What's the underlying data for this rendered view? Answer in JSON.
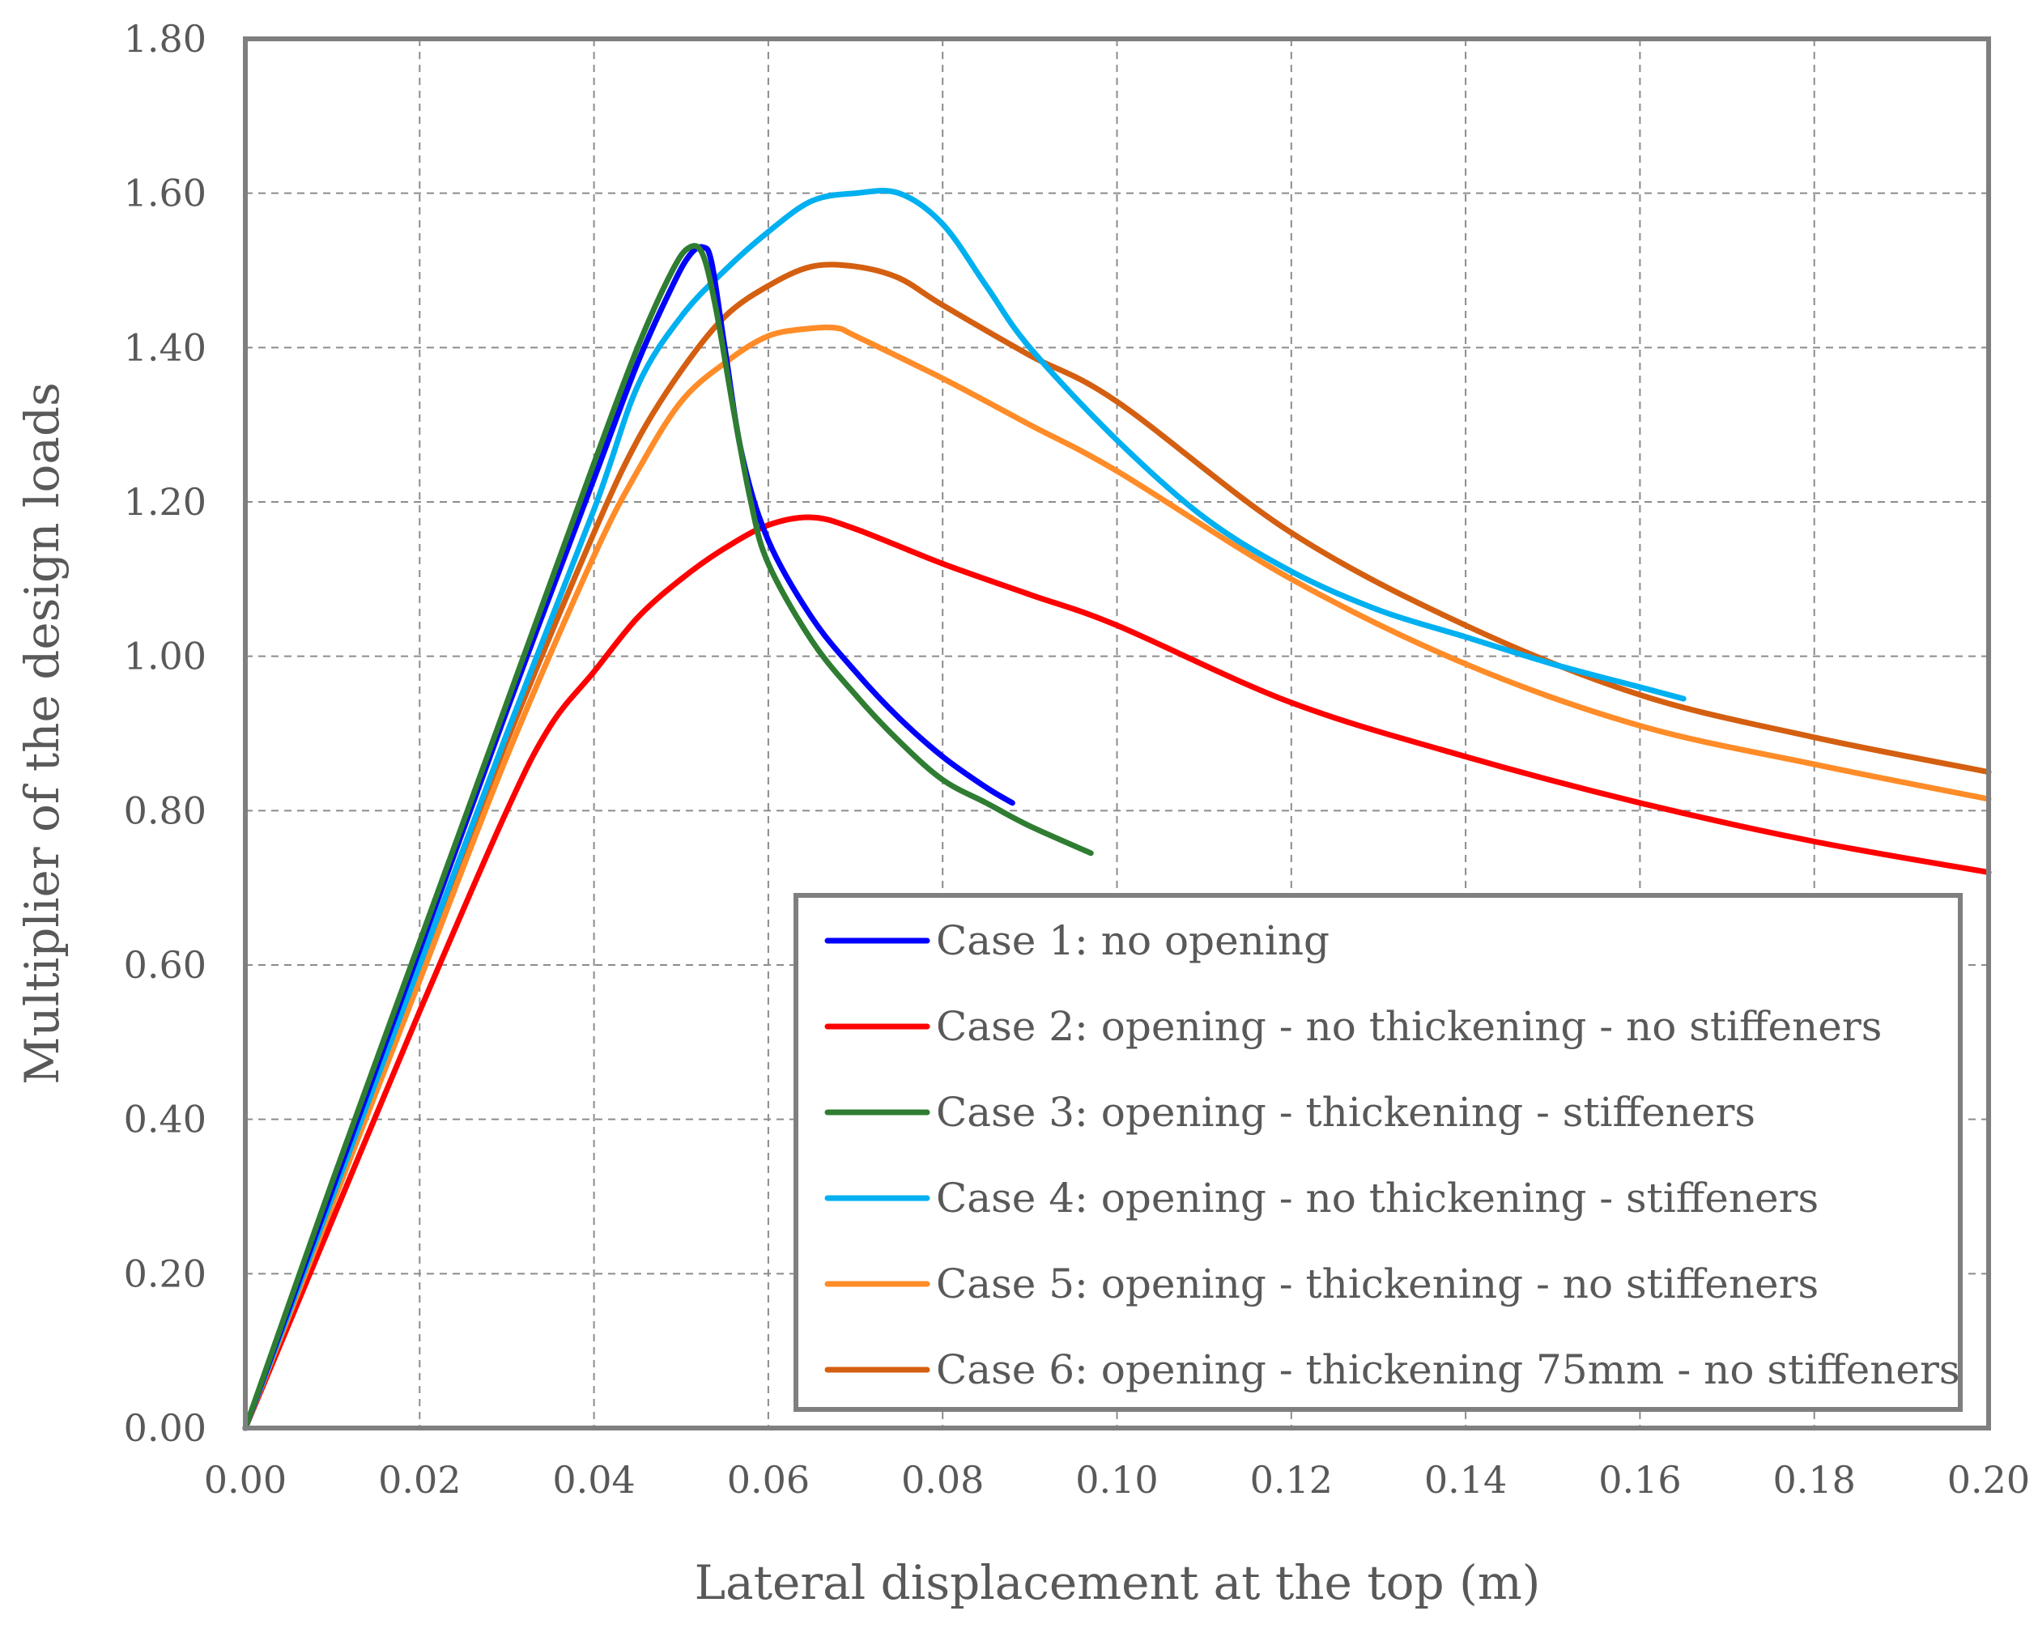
{
  "chart_data": {
    "type": "line",
    "title": "",
    "xlabel": "Lateral displacement at the top (m)",
    "ylabel": "Multiplier of the design loads",
    "xlim": [
      0,
      0.2
    ],
    "ylim": [
      0,
      1.8
    ],
    "x_ticks": [
      "0.00",
      "0.02",
      "0.04",
      "0.06",
      "0.08",
      "0.10",
      "0.12",
      "0.14",
      "0.16",
      "0.18",
      "0.20"
    ],
    "y_ticks": [
      "0.00",
      "0.20",
      "0.40",
      "0.60",
      "0.80",
      "1.00",
      "1.20",
      "1.40",
      "1.60",
      "1.80"
    ],
    "grid": true,
    "legend_position": "bottom-right",
    "series": [
      {
        "name": "Case 1: no opening",
        "color": "#0000ff",
        "points": [
          [
            0,
            0
          ],
          [
            0.01,
            0.31
          ],
          [
            0.02,
            0.62
          ],
          [
            0.03,
            0.93
          ],
          [
            0.04,
            1.23
          ],
          [
            0.045,
            1.38
          ],
          [
            0.049,
            1.48
          ],
          [
            0.051,
            1.52
          ],
          [
            0.0525,
            1.53
          ],
          [
            0.0535,
            1.51
          ],
          [
            0.055,
            1.4
          ],
          [
            0.057,
            1.26
          ],
          [
            0.06,
            1.15
          ],
          [
            0.065,
            1.05
          ],
          [
            0.07,
            0.98
          ],
          [
            0.075,
            0.92
          ],
          [
            0.08,
            0.87
          ],
          [
            0.085,
            0.83
          ],
          [
            0.088,
            0.81
          ]
        ]
      },
      {
        "name": "Case 2: opening - no thickening - no stiffeners",
        "color": "#ff0000",
        "points": [
          [
            0,
            0
          ],
          [
            0.01,
            0.27
          ],
          [
            0.02,
            0.54
          ],
          [
            0.03,
            0.8
          ],
          [
            0.035,
            0.91
          ],
          [
            0.04,
            0.98
          ],
          [
            0.045,
            1.05
          ],
          [
            0.05,
            1.1
          ],
          [
            0.055,
            1.14
          ],
          [
            0.06,
            1.17
          ],
          [
            0.065,
            1.18
          ],
          [
            0.07,
            1.165
          ],
          [
            0.08,
            1.12
          ],
          [
            0.09,
            1.08
          ],
          [
            0.1,
            1.04
          ],
          [
            0.12,
            0.94
          ],
          [
            0.14,
            0.87
          ],
          [
            0.16,
            0.81
          ],
          [
            0.18,
            0.76
          ],
          [
            0.2,
            0.72
          ]
        ]
      },
      {
        "name": "Case 3: opening - thickening - stiffeners",
        "color": "#2e7d32",
        "points": [
          [
            0,
            0
          ],
          [
            0.01,
            0.32
          ],
          [
            0.02,
            0.63
          ],
          [
            0.03,
            0.94
          ],
          [
            0.04,
            1.25
          ],
          [
            0.045,
            1.4
          ],
          [
            0.049,
            1.5
          ],
          [
            0.051,
            1.53
          ],
          [
            0.0525,
            1.52
          ],
          [
            0.054,
            1.45
          ],
          [
            0.056,
            1.32
          ],
          [
            0.058,
            1.2
          ],
          [
            0.06,
            1.12
          ],
          [
            0.065,
            1.02
          ],
          [
            0.07,
            0.95
          ],
          [
            0.075,
            0.89
          ],
          [
            0.08,
            0.84
          ],
          [
            0.085,
            0.81
          ],
          [
            0.09,
            0.78
          ],
          [
            0.097,
            0.745
          ]
        ]
      },
      {
        "name": "Case 4: opening - no thickening - stiffeners",
        "color": "#00b0f0",
        "points": [
          [
            0,
            0
          ],
          [
            0.01,
            0.3
          ],
          [
            0.02,
            0.6
          ],
          [
            0.03,
            0.9
          ],
          [
            0.04,
            1.19
          ],
          [
            0.045,
            1.35
          ],
          [
            0.05,
            1.44
          ],
          [
            0.055,
            1.5
          ],
          [
            0.06,
            1.55
          ],
          [
            0.065,
            1.59
          ],
          [
            0.07,
            1.6
          ],
          [
            0.075,
            1.6
          ],
          [
            0.08,
            1.56
          ],
          [
            0.085,
            1.48
          ],
          [
            0.09,
            1.4
          ],
          [
            0.1,
            1.28
          ],
          [
            0.11,
            1.18
          ],
          [
            0.12,
            1.11
          ],
          [
            0.13,
            1.06
          ],
          [
            0.14,
            1.025
          ],
          [
            0.15,
            0.99
          ],
          [
            0.16,
            0.96
          ],
          [
            0.165,
            0.945
          ]
        ]
      },
      {
        "name": "Case 5: opening - thickening - no stiffeners",
        "color": "#ff8c28",
        "points": [
          [
            0,
            0
          ],
          [
            0.01,
            0.29
          ],
          [
            0.02,
            0.58
          ],
          [
            0.03,
            0.87
          ],
          [
            0.04,
            1.13
          ],
          [
            0.045,
            1.24
          ],
          [
            0.05,
            1.33
          ],
          [
            0.055,
            1.38
          ],
          [
            0.06,
            1.415
          ],
          [
            0.065,
            1.425
          ],
          [
            0.068,
            1.425
          ],
          [
            0.07,
            1.415
          ],
          [
            0.08,
            1.36
          ],
          [
            0.09,
            1.3
          ],
          [
            0.1,
            1.24
          ],
          [
            0.12,
            1.1
          ],
          [
            0.14,
            0.99
          ],
          [
            0.16,
            0.91
          ],
          [
            0.18,
            0.86
          ],
          [
            0.2,
            0.815
          ]
        ]
      },
      {
        "name": "Case 6: opening - thickening 75mm - no stiffeners",
        "color": "#d45f10",
        "points": [
          [
            0,
            0
          ],
          [
            0.01,
            0.3
          ],
          [
            0.02,
            0.6
          ],
          [
            0.03,
            0.89
          ],
          [
            0.04,
            1.16
          ],
          [
            0.045,
            1.28
          ],
          [
            0.05,
            1.37
          ],
          [
            0.055,
            1.44
          ],
          [
            0.06,
            1.48
          ],
          [
            0.065,
            1.505
          ],
          [
            0.07,
            1.505
          ],
          [
            0.075,
            1.49
          ],
          [
            0.08,
            1.455
          ],
          [
            0.09,
            1.39
          ],
          [
            0.1,
            1.33
          ],
          [
            0.12,
            1.16
          ],
          [
            0.14,
            1.04
          ],
          [
            0.16,
            0.95
          ],
          [
            0.18,
            0.895
          ],
          [
            0.2,
            0.85
          ]
        ]
      }
    ]
  }
}
